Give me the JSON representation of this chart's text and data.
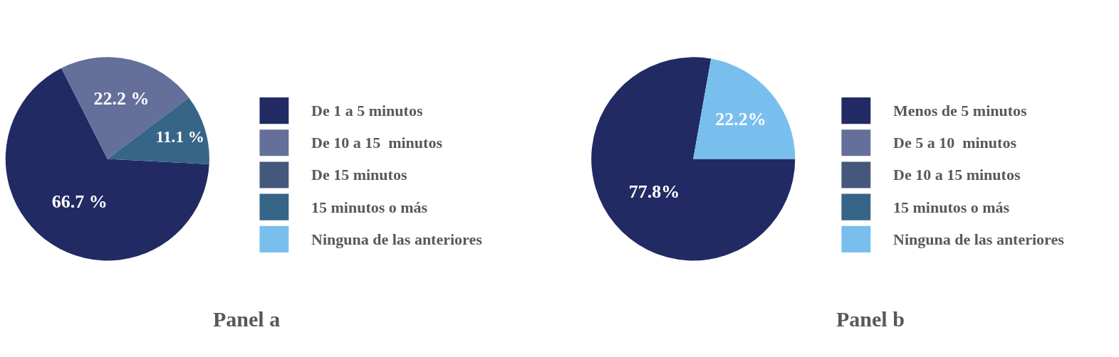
{
  "chart_data": [
    {
      "type": "pie",
      "title": "Panel a",
      "legend": "right",
      "categories": [
        "De 1 a 5 minutos",
        "De 10 a 15  minutos",
        "De 15 minutos",
        "15 minutos o más",
        "Ninguna de las anteriores"
      ],
      "values": [
        66.7,
        22.2,
        0,
        11.1,
        0
      ],
      "colors": [
        "#212a63",
        "#646f9a",
        "#44587c",
        "#366587",
        "#79bfee"
      ],
      "value_labels": [
        "66.7 %",
        "22.2 %",
        null,
        "11.1 %",
        null
      ]
    },
    {
      "type": "pie",
      "title": "Panel b",
      "legend": "right",
      "categories": [
        "Menos de 5 minutos",
        "De 5 a 10  minutos",
        "De 10 a 15 minutos",
        "15 minutos o más",
        "Ninguna de las anteriores"
      ],
      "values": [
        77.8,
        0,
        0,
        0,
        22.2
      ],
      "colors": [
        "#212a63",
        "#646f9a",
        "#44587c",
        "#366587",
        "#79bfee"
      ],
      "value_labels": [
        "77.8%",
        null,
        null,
        null,
        "22.2%"
      ]
    }
  ]
}
